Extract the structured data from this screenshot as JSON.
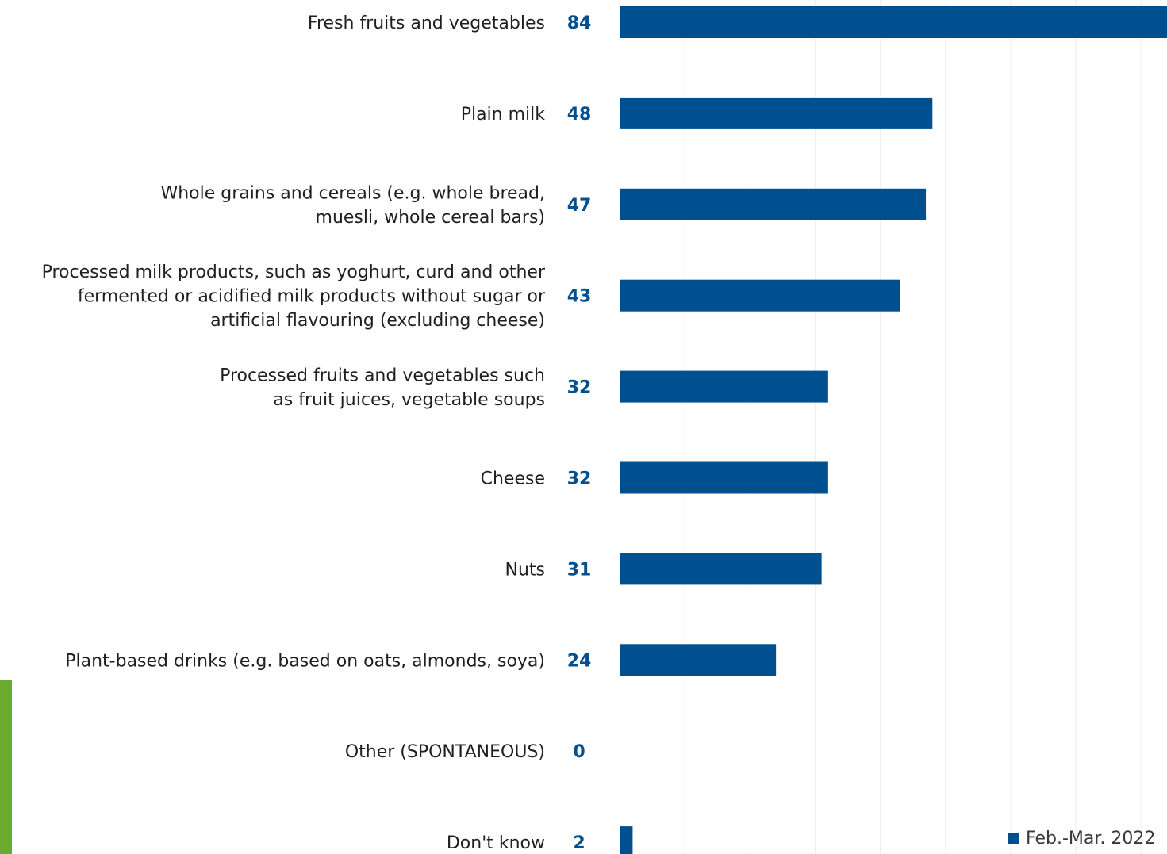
{
  "chart_data": {
    "type": "bar",
    "orientation": "horizontal",
    "categories": [
      [
        "Fresh fruits and vegetables"
      ],
      [
        "Plain milk"
      ],
      [
        "Whole grains and cereals (e.g. whole bread,",
        "muesli, whole cereal bars)"
      ],
      [
        "Processed milk products, such as yoghurt, curd and other",
        "fermented or acidified milk products without sugar or",
        "artificial flavouring (excluding cheese)"
      ],
      [
        "Processed fruits and vegetables such",
        "as fruit juices, vegetable soups"
      ],
      [
        "Cheese"
      ],
      [
        "Nuts"
      ],
      [
        "Plant-based drinks (e.g. based on oats, almonds, soya)"
      ],
      [
        "Other (SPONTANEOUS)"
      ],
      [
        "Don't know"
      ]
    ],
    "series": [
      {
        "name": "Feb.-Mar. 2022",
        "color": "#00508f",
        "values": [
          84,
          48,
          47,
          43,
          32,
          32,
          31,
          24,
          0,
          2
        ]
      }
    ],
    "xlim": [
      0,
      84
    ],
    "grid": true,
    "legend_position": "bottom-right",
    "title": "",
    "xlabel": "",
    "ylabel": ""
  },
  "colors": {
    "bar": "#00508f",
    "value_label": "#00508f",
    "gridline": "#eeeeee",
    "accent_strip": "#6aaa2f"
  }
}
